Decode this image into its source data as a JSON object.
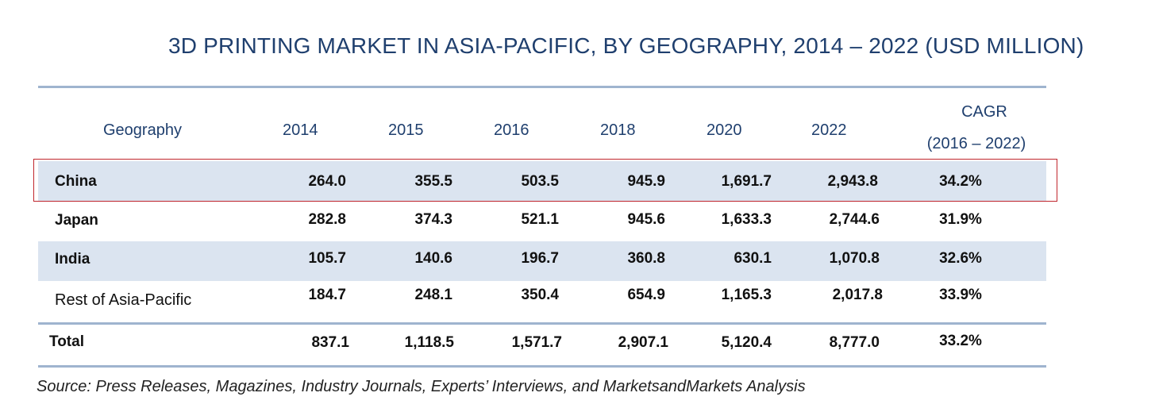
{
  "title": "3D PRINTING MARKET IN ASIA-PACIFIC, BY GEOGRAPHY, 2014 – 2022 (USD MILLION)",
  "table": {
    "headers": {
      "geography": "Geography",
      "years": [
        "2014",
        "2015",
        "2016",
        "2018",
        "2020",
        "2022"
      ],
      "cagr_line1": "CAGR",
      "cagr_line2": "(2016 – 2022)"
    },
    "rows": [
      {
        "name": "China",
        "values": [
          "264.0",
          "355.5",
          "503.5",
          "945.9",
          "1,691.7",
          "2,943.8"
        ],
        "cagr": "34.2%"
      },
      {
        "name": "Japan",
        "values": [
          "282.8",
          "374.3",
          "521.1",
          "945.6",
          "1,633.3",
          "2,744.6"
        ],
        "cagr": "31.9%"
      },
      {
        "name": "India",
        "values": [
          "105.7",
          "140.6",
          "196.7",
          "360.8",
          "630.1",
          "1,070.8"
        ],
        "cagr": "32.6%"
      },
      {
        "name": "Rest of Asia-Pacific",
        "values": [
          "184.7",
          "248.1",
          "350.4",
          "654.9",
          "1,165.3",
          "2,017.8"
        ],
        "cagr": "33.9%"
      }
    ],
    "total": {
      "name": "Total",
      "values": [
        "837.1",
        "1,118.5",
        "1,571.7",
        "2,907.1",
        "5,120.4",
        "8,777.0"
      ],
      "cagr": "33.2%"
    }
  },
  "source": "Source: Press Releases, Magazines, Industry Journals, Experts’ Interviews, and MarketsandMarkets Analysis",
  "colors": {
    "title": "#1f3f6e",
    "row_shade": "#dbe4f0",
    "rule": "#9fb4cf",
    "highlight_border": "#c0262d"
  }
}
